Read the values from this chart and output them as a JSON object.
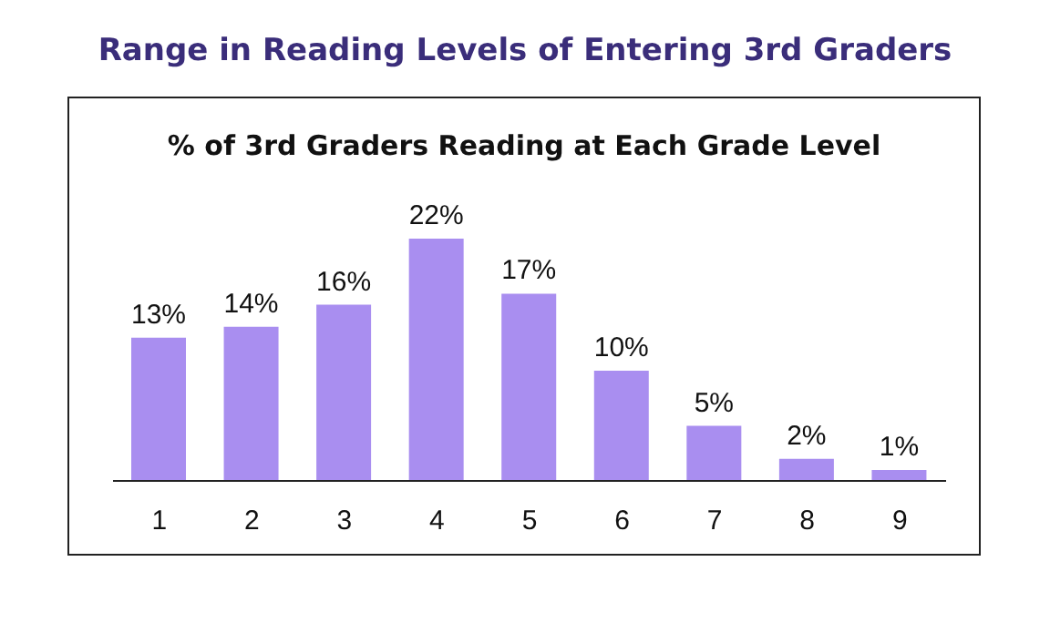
{
  "chart_data": {
    "type": "bar",
    "title": "Range in Reading Levels of Entering 3rd Graders",
    "subtitle": "% of 3rd Graders Reading at Each Grade Level",
    "categories": [
      "1",
      "2",
      "3",
      "4",
      "5",
      "6",
      "7",
      "8",
      "9"
    ],
    "values": [
      13,
      14,
      16,
      22,
      17,
      10,
      5,
      2,
      1
    ],
    "value_labels": [
      "13%",
      "14%",
      "16%",
      "22%",
      "17%",
      "10%",
      "5%",
      "2%",
      "1%"
    ],
    "color": "#a98ef0"
  }
}
